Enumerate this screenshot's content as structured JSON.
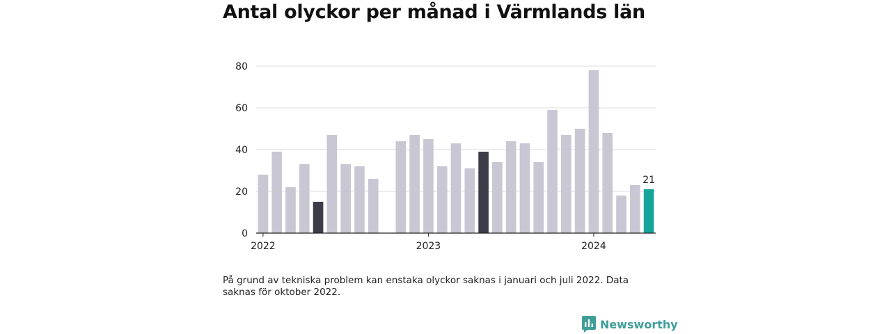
{
  "page": {
    "title": "Antal olyckor per månad i Värmlands län",
    "note": "På grund av tekniska problem kan enstaka olyckor saknas i januari och juli 2022. Data saknas för oktober 2022.",
    "brand": {
      "name": "Newsworthy",
      "icon": "newsworthy-logo-icon",
      "color": "#3f9f98"
    }
  },
  "chart_data": {
    "type": "bar",
    "title": "Antal olyckor per månad i Värmlands län",
    "xlabel": "",
    "ylabel": "",
    "ylim": [
      0,
      80
    ],
    "yticks": [
      0,
      20,
      40,
      60,
      80
    ],
    "grid": true,
    "legend": "none",
    "x_tick_labels": [
      {
        "label": "2022",
        "month": "2022-01"
      },
      {
        "label": "2023",
        "month": "2023-01"
      },
      {
        "label": "2024",
        "month": "2024-01"
      }
    ],
    "colors": {
      "default": "#c9c7d3",
      "highlight": "#3d3d4a",
      "latest": "#17a39a"
    },
    "months": [
      "2022-01",
      "2022-02",
      "2022-03",
      "2022-04",
      "2022-05",
      "2022-06",
      "2022-07",
      "2022-08",
      "2022-09",
      "2022-10",
      "2022-11",
      "2022-12",
      "2023-01",
      "2023-02",
      "2023-03",
      "2023-04",
      "2023-05",
      "2023-06",
      "2023-07",
      "2023-08",
      "2023-09",
      "2023-10",
      "2023-11",
      "2023-12",
      "2024-01",
      "2024-02",
      "2024-03",
      "2024-04",
      "2024-05"
    ],
    "values": [
      28,
      39,
      22,
      33,
      15,
      47,
      33,
      32,
      26,
      null,
      44,
      47,
      45,
      32,
      43,
      31,
      39,
      34,
      44,
      43,
      34,
      59,
      47,
      50,
      78,
      48,
      18,
      23,
      21
    ],
    "highlighted_months": [
      "2022-05",
      "2023-05"
    ],
    "latest_month": "2024-05",
    "data_labels": [
      {
        "month": "2024-05",
        "text": "21"
      }
    ]
  }
}
